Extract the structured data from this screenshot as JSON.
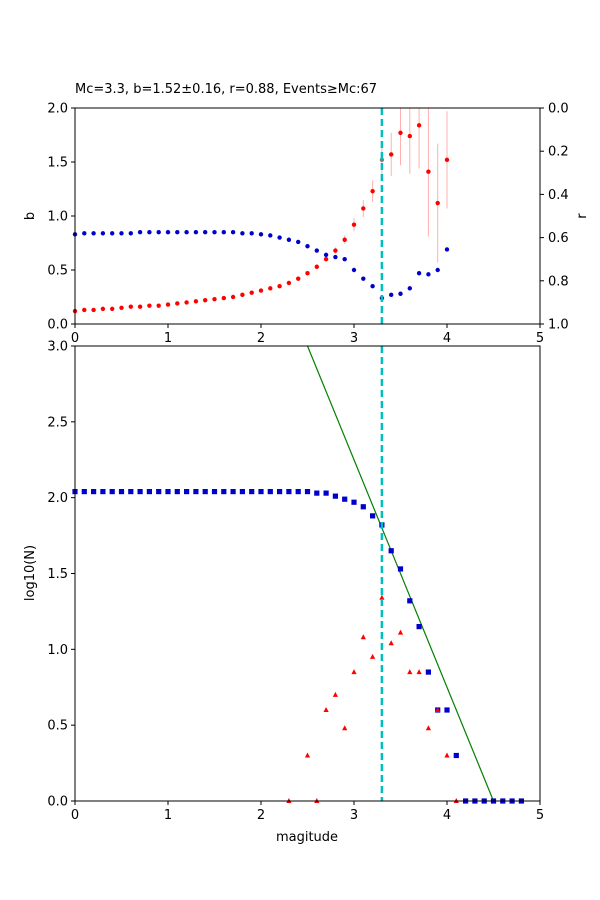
{
  "chart_data": [
    {
      "type": "scatter",
      "title": "Mc=3.3, b=1.52±0.16, r=0.88, Events≥Mc:67",
      "xlabel": "",
      "ylabel": "b",
      "ylabel_right": "r",
      "xlim": [
        0,
        5
      ],
      "ylim": [
        0,
        2
      ],
      "ylim_right": [
        1,
        0
      ],
      "x_ticks": [
        "0",
        "1",
        "2",
        "3",
        "4",
        "5"
      ],
      "y_ticks": [
        "0.0",
        "0.5",
        "1.0",
        "1.5",
        "2.0"
      ],
      "y_right_ticks": [
        "0.0",
        "0.2",
        "0.4",
        "0.6",
        "0.8",
        "1.0"
      ],
      "grid": false,
      "mc_line": 3.3,
      "colors": {
        "b": "#ff0000",
        "r": "#0000cc",
        "mc": "#00bfbf",
        "err": "#ffb0b0",
        "mc_point": "#808080"
      },
      "series": [
        {
          "axis": "left",
          "x": [
            0.0,
            0.1,
            0.2,
            0.3,
            0.4,
            0.5,
            0.6,
            0.7,
            0.8,
            0.9,
            1.0,
            1.1,
            1.2,
            1.3,
            1.4,
            1.5,
            1.6,
            1.7,
            1.8,
            1.9,
            2.0,
            2.1,
            2.2,
            2.3,
            2.4,
            2.5,
            2.6,
            2.7,
            2.8,
            2.9,
            3.0,
            3.1,
            3.2,
            3.3,
            3.4,
            3.5,
            3.6,
            3.7,
            3.8,
            3.9,
            4.0
          ],
          "values": [
            0.12,
            0.13,
            0.13,
            0.14,
            0.14,
            0.15,
            0.16,
            0.16,
            0.17,
            0.17,
            0.18,
            0.19,
            0.2,
            0.21,
            0.22,
            0.23,
            0.24,
            0.25,
            0.27,
            0.29,
            0.31,
            0.33,
            0.35,
            0.38,
            0.42,
            0.47,
            0.53,
            0.6,
            0.68,
            0.78,
            0.92,
            1.07,
            1.23,
            1.52,
            1.57,
            1.77,
            1.74,
            1.84,
            1.41,
            1.12,
            1.52
          ],
          "errors": [
            0.0,
            0.0,
            0.0,
            0.0,
            0.0,
            0.0,
            0.0,
            0.0,
            0.0,
            0.0,
            0.0,
            0.0,
            0.0,
            0.0,
            0.0,
            0.0,
            0.0,
            0.0,
            0.0,
            0.0,
            0.0,
            0.0,
            0.0,
            0.0,
            0.01,
            0.01,
            0.01,
            0.02,
            0.03,
            0.04,
            0.06,
            0.08,
            0.1,
            0.16,
            0.2,
            0.3,
            0.35,
            0.4,
            0.6,
            0.55,
            0.45
          ]
        },
        {
          "axis": "right",
          "x": [
            0.0,
            0.1,
            0.2,
            0.3,
            0.4,
            0.5,
            0.6,
            0.7,
            0.8,
            0.9,
            1.0,
            1.1,
            1.2,
            1.3,
            1.4,
            1.5,
            1.6,
            1.7,
            1.8,
            1.9,
            2.0,
            2.1,
            2.2,
            2.3,
            2.4,
            2.5,
            2.6,
            2.7,
            2.8,
            2.9,
            3.0,
            3.1,
            3.2,
            3.3,
            3.4,
            3.5,
            3.6,
            3.7,
            3.8,
            3.9,
            4.0
          ],
          "values": [
            0.585,
            0.58,
            0.58,
            0.58,
            0.58,
            0.58,
            0.58,
            0.575,
            0.575,
            0.575,
            0.575,
            0.575,
            0.575,
            0.575,
            0.575,
            0.575,
            0.575,
            0.575,
            0.58,
            0.58,
            0.585,
            0.59,
            0.6,
            0.61,
            0.62,
            0.64,
            0.66,
            0.68,
            0.69,
            0.7,
            0.75,
            0.79,
            0.825,
            0.88,
            0.865,
            0.86,
            0.835,
            0.765,
            0.77,
            0.75,
            0.655
          ]
        }
      ]
    },
    {
      "type": "scatter",
      "title": "",
      "xlabel": "magitude",
      "ylabel": "log10(N)",
      "xlim": [
        0,
        5
      ],
      "ylim": [
        0,
        3
      ],
      "x_ticks": [
        "0",
        "1",
        "2",
        "3",
        "4",
        "5"
      ],
      "y_ticks": [
        "0.0",
        "0.5",
        "1.0",
        "1.5",
        "2.0",
        "2.5",
        "3.0"
      ],
      "grid": false,
      "mc_line": 3.3,
      "fit_line": {
        "x": [
          2.4,
          4.5
        ],
        "y": [
          3.15,
          0.0
        ]
      },
      "colors": {
        "cumulative": "#0000cc",
        "noncumulative": "#ff0000",
        "fit": "#008000",
        "mc": "#00bfbf"
      },
      "series": [
        {
          "marker": "square",
          "x": [
            0.0,
            0.1,
            0.2,
            0.3,
            0.4,
            0.5,
            0.6,
            0.7,
            0.8,
            0.9,
            1.0,
            1.1,
            1.2,
            1.3,
            1.4,
            1.5,
            1.6,
            1.7,
            1.8,
            1.9,
            2.0,
            2.1,
            2.2,
            2.3,
            2.4,
            2.5,
            2.6,
            2.7,
            2.8,
            2.9,
            3.0,
            3.1,
            3.2,
            3.3,
            3.4,
            3.5,
            3.6,
            3.7,
            3.8,
            3.9,
            4.0,
            4.1,
            4.2,
            4.3,
            4.4,
            4.5,
            4.6,
            4.7,
            4.8
          ],
          "values": [
            2.04,
            2.04,
            2.04,
            2.04,
            2.04,
            2.04,
            2.04,
            2.04,
            2.04,
            2.04,
            2.04,
            2.04,
            2.04,
            2.04,
            2.04,
            2.04,
            2.04,
            2.04,
            2.04,
            2.04,
            2.04,
            2.04,
            2.04,
            2.04,
            2.04,
            2.04,
            2.03,
            2.03,
            2.01,
            1.99,
            1.97,
            1.94,
            1.88,
            1.82,
            1.65,
            1.53,
            1.32,
            1.15,
            0.85,
            0.6,
            0.6,
            0.3,
            0.0,
            0.0,
            0.0,
            0.0,
            0.0,
            0.0,
            0.0
          ]
        },
        {
          "marker": "triangle",
          "x": [
            2.3,
            2.5,
            2.6,
            2.7,
            2.8,
            2.9,
            3.0,
            3.1,
            3.2,
            3.3,
            3.4,
            3.5,
            3.6,
            3.7,
            3.8,
            3.9,
            4.0,
            4.1
          ],
          "values": [
            0.0,
            0.3,
            0.0,
            0.6,
            0.7,
            0.48,
            0.85,
            1.08,
            0.95,
            1.34,
            1.04,
            1.11,
            0.85,
            0.85,
            0.48,
            0.6,
            0.3,
            0.0
          ]
        }
      ]
    }
  ]
}
